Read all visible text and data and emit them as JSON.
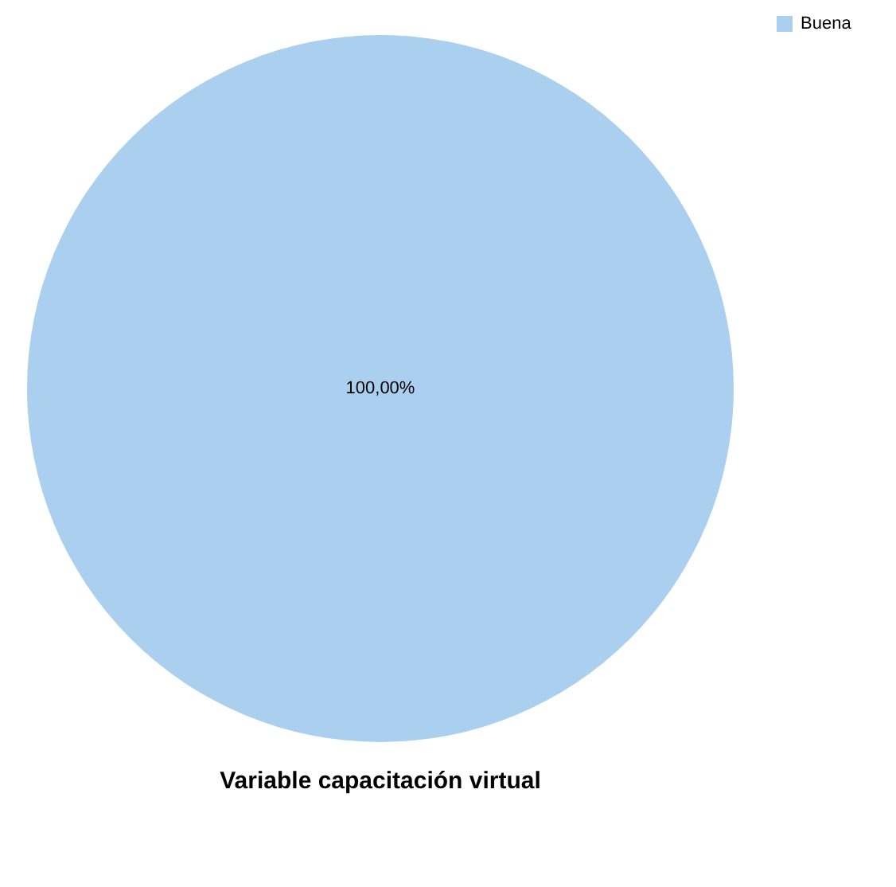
{
  "chart_data": {
    "type": "pie",
    "title": "Variable capacitación virtual",
    "categories": [
      "Buena"
    ],
    "values": [
      100
    ],
    "colors": [
      "#abcfee"
    ],
    "value_labels": [
      "100,00%"
    ],
    "legend": "top right"
  }
}
